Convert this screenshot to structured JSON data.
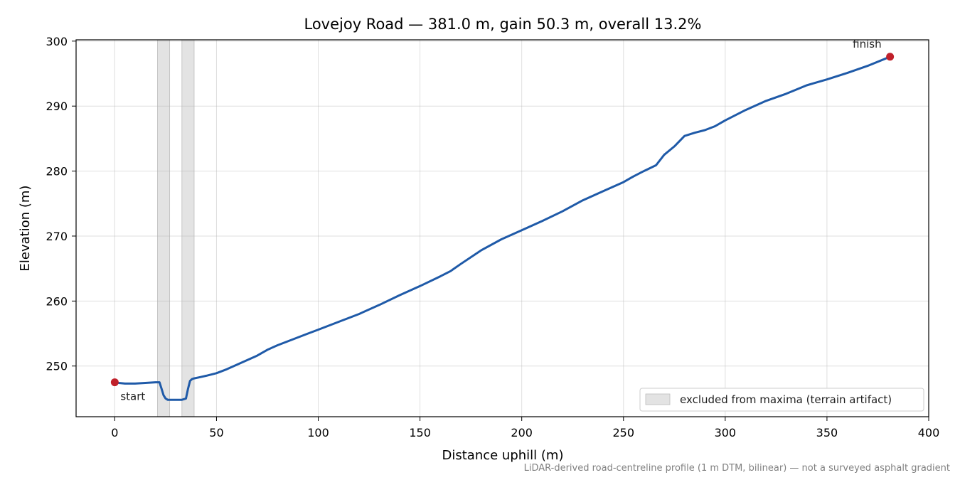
{
  "chart_data": {
    "type": "line",
    "title": "Lovejoy Road — 381.0 m, gain 50.3 m, overall 13.2%",
    "xlabel": "Distance uphill (m)",
    "ylabel": "Elevation (m)",
    "xlim": [
      -19,
      400
    ],
    "ylim": [
      242.2,
      300.2
    ],
    "xticks": [
      0,
      50,
      100,
      150,
      200,
      250,
      300,
      350,
      400
    ],
    "yticks": [
      250,
      260,
      270,
      280,
      290,
      300
    ],
    "grid": true,
    "line_color": "#1f5aa8",
    "marker_color": "#c0202a",
    "series": [
      {
        "x": [
          0,
          2,
          5,
          10,
          15,
          20,
          22,
          23,
          24,
          25,
          26,
          28,
          30,
          33,
          35,
          36,
          37,
          38,
          39,
          42,
          45,
          50,
          55,
          60,
          65,
          70,
          75,
          80,
          85,
          90,
          95,
          100,
          110,
          120,
          130,
          140,
          150,
          160,
          165,
          170,
          180,
          190,
          200,
          210,
          220,
          230,
          240,
          250,
          255,
          260,
          266,
          270,
          275,
          280,
          285,
          290,
          295,
          300,
          310,
          320,
          330,
          340,
          350,
          360,
          370,
          381
        ],
        "y": [
          247.5,
          247.4,
          247.3,
          247.3,
          247.4,
          247.5,
          247.5,
          246.5,
          245.5,
          245.0,
          244.8,
          244.8,
          244.8,
          244.8,
          245.0,
          246.5,
          247.7,
          248.0,
          248.1,
          248.3,
          248.5,
          248.9,
          249.5,
          250.2,
          250.9,
          251.6,
          252.5,
          253.2,
          253.8,
          254.4,
          255.0,
          255.6,
          256.8,
          258.0,
          259.4,
          260.9,
          262.3,
          263.8,
          264.6,
          265.7,
          267.8,
          269.5,
          270.9,
          272.3,
          273.8,
          275.5,
          276.9,
          278.3,
          279.2,
          280.0,
          280.9,
          282.5,
          283.8,
          285.4,
          285.9,
          286.3,
          286.9,
          287.8,
          289.4,
          290.8,
          291.9,
          293.2,
          294.1,
          295.1,
          296.2,
          297.6
        ]
      }
    ],
    "excluded_spans": [
      [
        21,
        27
      ],
      [
        33,
        39
      ]
    ],
    "points": [
      {
        "label": "start",
        "x": 0,
        "y": 247.5
      },
      {
        "label": "finish",
        "x": 381,
        "y": 297.6
      }
    ],
    "legend": {
      "position": "lower-right",
      "entries": [
        "excluded from maxima (terrain artifact)"
      ]
    },
    "footnote": "LiDAR-derived road-centreline profile (1 m DTM, bilinear) — not a surveyed asphalt gradient"
  }
}
